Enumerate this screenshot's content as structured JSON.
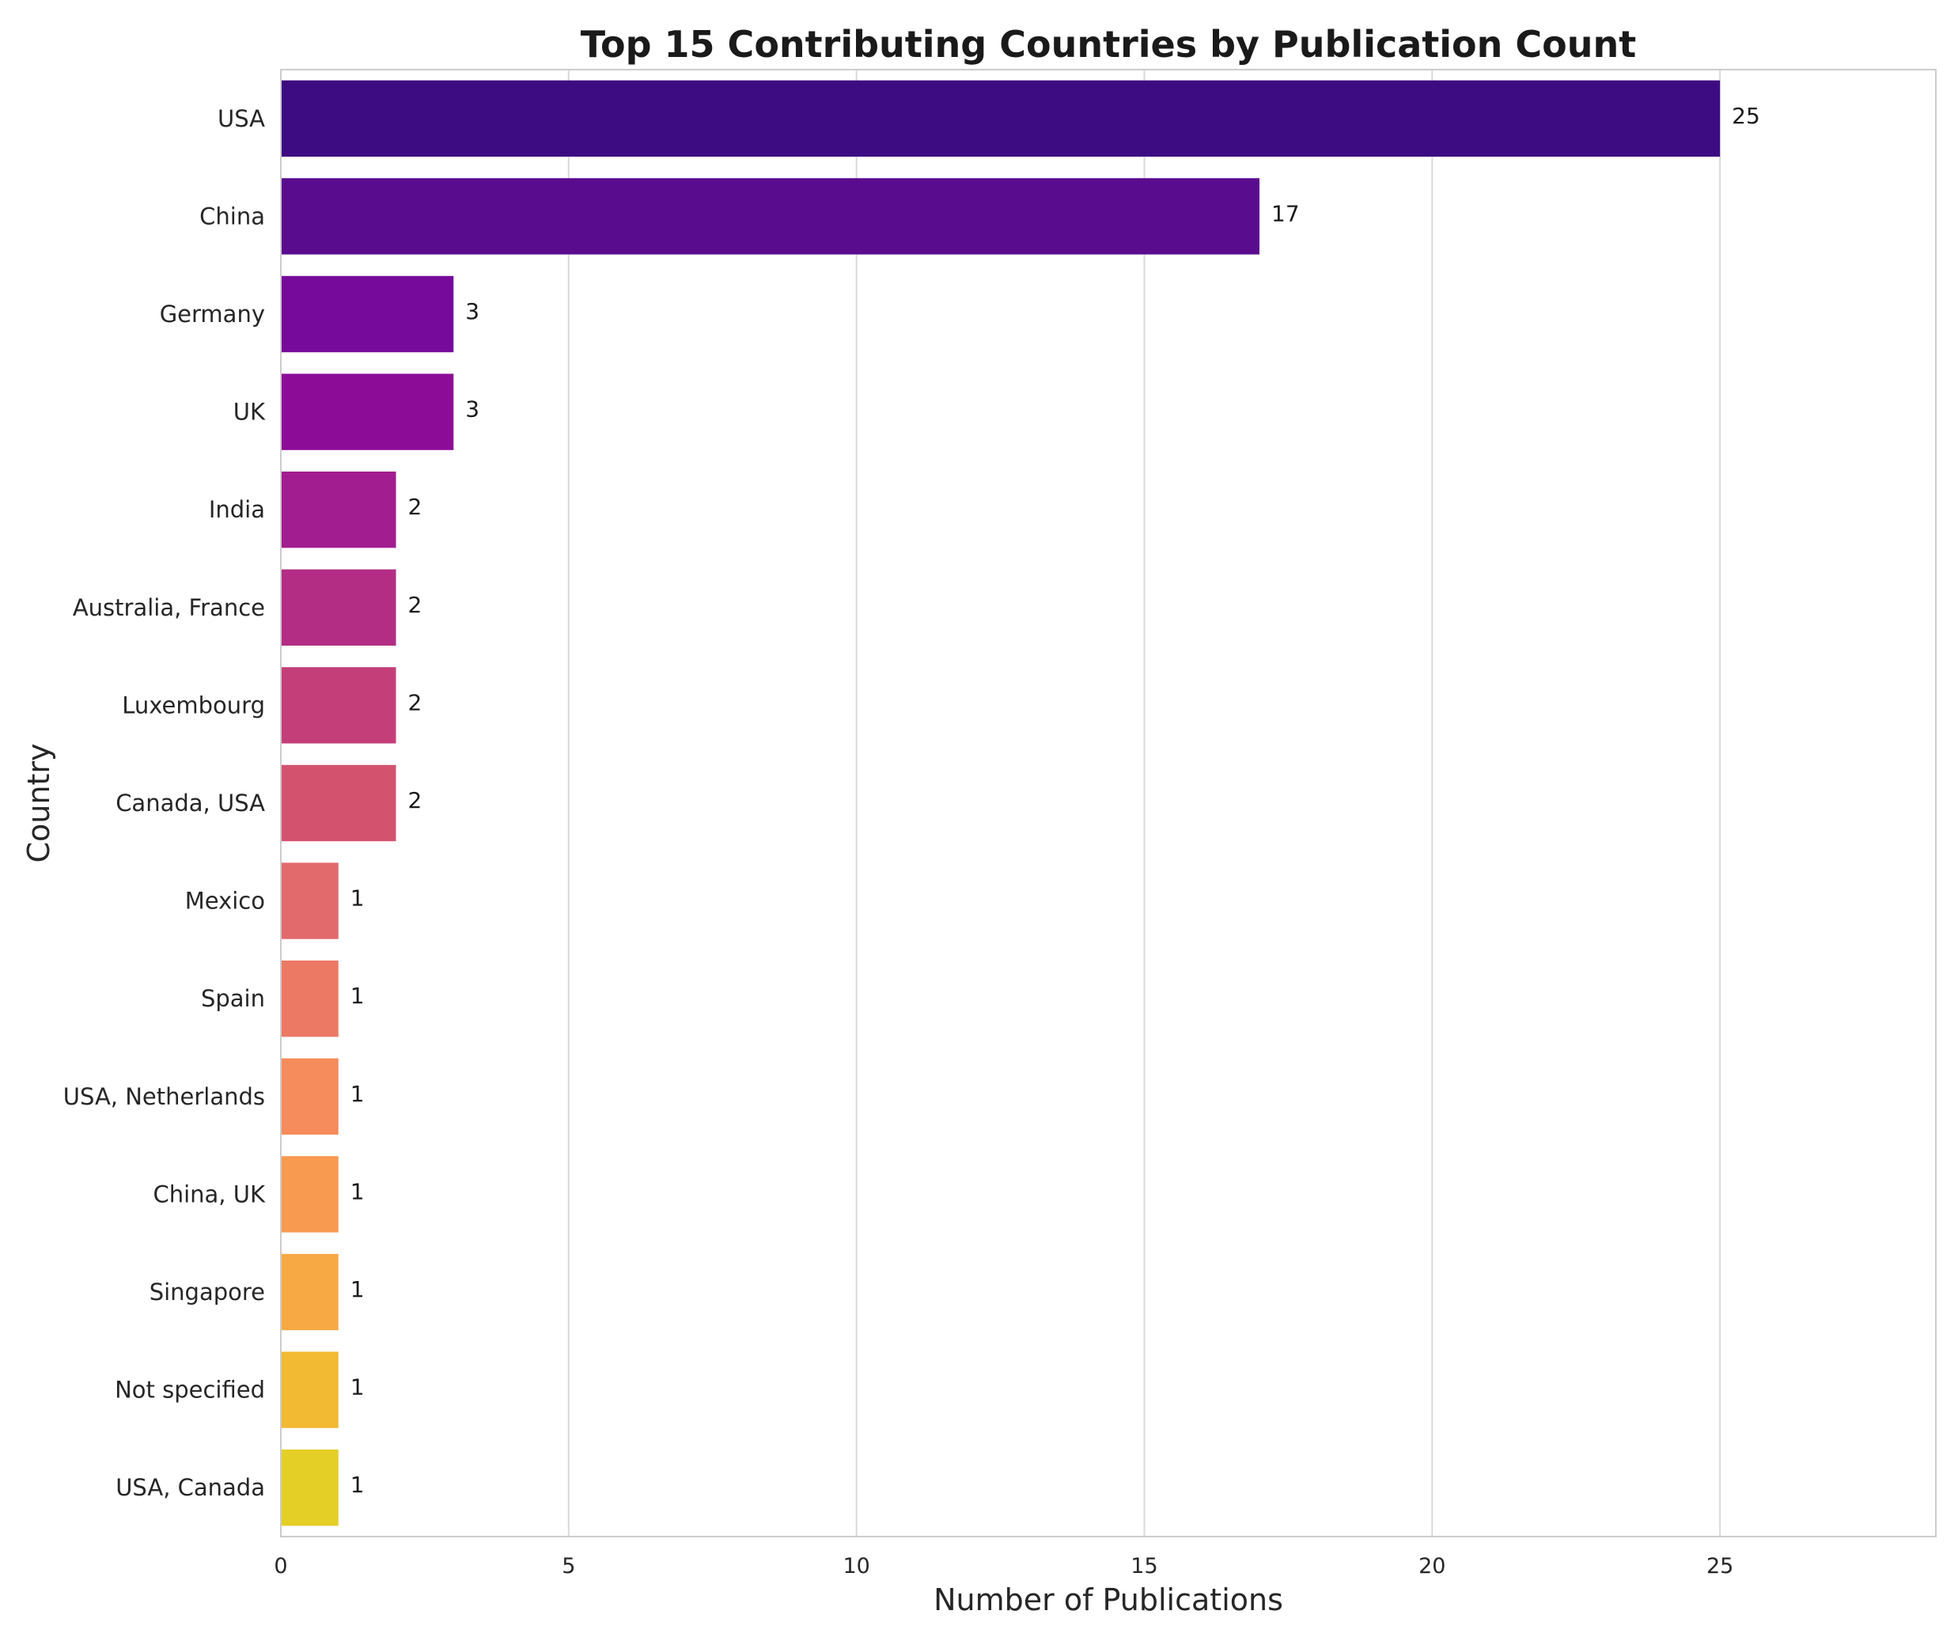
{
  "chart_data": {
    "type": "bar",
    "orientation": "horizontal",
    "title": "Top 15 Contributing Countries by Publication Count",
    "xlabel": "Number of Publications",
    "ylabel": "Country",
    "xlim": [
      0,
      28.75
    ],
    "xticks": [
      0,
      5,
      10,
      15,
      20,
      25
    ],
    "grid": "vertical",
    "legend": "none",
    "categories": [
      "USA",
      "China",
      "Germany",
      "UK",
      "India",
      "Australia, France",
      "Luxembourg",
      "Canada, USA",
      "Mexico",
      "Spain",
      "USA, Netherlands",
      "China, UK",
      "Singapore",
      "Not specified",
      "USA, Canada"
    ],
    "values": [
      25,
      17,
      3,
      3,
      2,
      2,
      2,
      2,
      1,
      1,
      1,
      1,
      1,
      1,
      1
    ],
    "colors": [
      "#3d0c82",
      "#5a0c8e",
      "#760b9b",
      "#8d0c97",
      "#a21d8f",
      "#b32d85",
      "#c43f79",
      "#d3536f",
      "#e26a6c",
      "#ec7963",
      "#f68b5b",
      "#f89a50",
      "#f7a944",
      "#f2b933",
      "#e4cf26"
    ]
  }
}
